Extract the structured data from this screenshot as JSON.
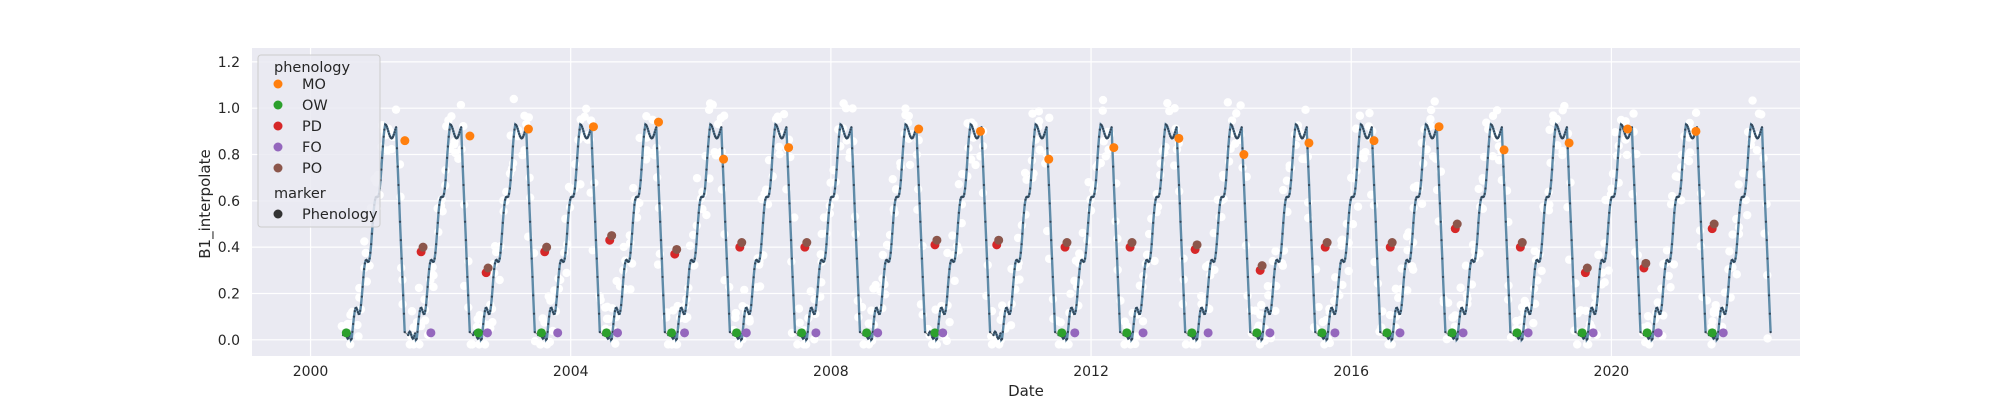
{
  "chart_data": {
    "type": "scatter",
    "xlabel": "Date",
    "ylabel": "B1_interpolate",
    "xlim": [
      1999.1,
      2022.9
    ],
    "ylim": [
      -0.07,
      1.26
    ],
    "x_ticks": [
      2000,
      2004,
      2008,
      2012,
      2016,
      2020
    ],
    "x_tick_labels": [
      "2000",
      "2004",
      "2008",
      "2012",
      "2016",
      "2020"
    ],
    "y_ticks": [
      0.0,
      0.2,
      0.4,
      0.6,
      0.8,
      1.0,
      1.2
    ],
    "y_tick_labels": [
      "0.0",
      "0.2",
      "0.4",
      "0.6",
      "0.8",
      "1.0",
      "1.2"
    ],
    "grid": true,
    "legend_position": "top-left",
    "legend": {
      "hue_title": "phenology",
      "hue_entries": [
        {
          "label": "MO",
          "color": "#ff7f0e"
        },
        {
          "label": "OW",
          "color": "#2ca02c"
        },
        {
          "label": "PD",
          "color": "#d62728"
        },
        {
          "label": "FO",
          "color": "#9467bd"
        },
        {
          "label": "PO",
          "color": "#8c564b"
        }
      ],
      "marker_title": "marker",
      "marker_entries": [
        {
          "label": "Phenology",
          "color": "#333333"
        }
      ]
    },
    "colors": {
      "plot_background": "#eaeaf2",
      "interpolated_line": "#5f8ba8",
      "interpolated_points": "#33475a",
      "raw_points": "#ffffff",
      "connector_line": "#808080"
    },
    "cycles": [
      {
        "mo": 2001.45,
        "mo_y": 0.86,
        "pd_y": 0.38,
        "ow": 2000.55,
        "fo": 2001.85
      },
      {
        "mo": 2002.45,
        "mo_y": 0.88,
        "pd_y": 0.29,
        "ow": 2002.58,
        "fo": 2002.72
      },
      {
        "mo": 2003.35,
        "mo_y": 0.91,
        "pd_y": 0.38,
        "ow": 2003.55,
        "fo": 2003.8
      },
      {
        "mo": 2004.35,
        "mo_y": 0.92,
        "pd_y": 0.43,
        "ow": 2004.55,
        "fo": 2004.72
      },
      {
        "mo": 2005.35,
        "mo_y": 0.94,
        "pd_y": 0.37,
        "ow": 2005.55,
        "fo": 2005.75
      },
      {
        "mo": 2006.35,
        "mo_y": 0.78,
        "pd_y": 0.4,
        "ow": 2006.55,
        "fo": 2006.7
      },
      {
        "mo": 2007.35,
        "mo_y": 0.83,
        "pd_y": 0.4,
        "ow": 2007.55,
        "fo": 2007.77
      },
      {
        "mo": 2009.35,
        "mo_y": 0.91,
        "pd_y": 0.41,
        "ow": 2008.55,
        "fo": 2008.72
      },
      {
        "mo": 2010.3,
        "mo_y": 0.9,
        "pd_y": 0.41,
        "ow": 2009.6,
        "fo": 2009.72
      },
      {
        "mo": 2011.35,
        "mo_y": 0.78,
        "pd_y": 0.4,
        "ow": 2011.55,
        "fo": 2011.75
      },
      {
        "mo": 2012.35,
        "mo_y": 0.83,
        "pd_y": 0.4,
        "ow": 2012.55,
        "fo": 2012.8
      },
      {
        "mo": 2013.35,
        "mo_y": 0.87,
        "pd_y": 0.39,
        "ow": 2013.55,
        "fo": 2013.8
      },
      {
        "mo": 2014.35,
        "mo_y": 0.8,
        "pd_y": 0.3,
        "ow": 2014.55,
        "fo": 2014.75
      },
      {
        "mo": 2015.35,
        "mo_y": 0.85,
        "pd_y": 0.4,
        "ow": 2015.55,
        "fo": 2015.75
      },
      {
        "mo": 2016.35,
        "mo_y": 0.86,
        "pd_y": 0.4,
        "ow": 2016.55,
        "fo": 2016.75
      },
      {
        "mo": 2017.35,
        "mo_y": 0.92,
        "pd_y": 0.48,
        "ow": 2017.55,
        "fo": 2017.72
      },
      {
        "mo": 2018.35,
        "mo_y": 0.82,
        "pd_y": 0.4,
        "ow": 2018.55,
        "fo": 2018.72
      },
      {
        "mo": 2019.35,
        "mo_y": 0.85,
        "pd_y": 0.29,
        "ow": 2019.55,
        "fo": 2019.72
      },
      {
        "mo": 2020.25,
        "mo_y": 0.91,
        "pd_y": 0.31,
        "ow": 2020.55,
        "fo": 2020.72
      },
      {
        "mo": 2021.3,
        "mo_y": 0.9,
        "pd_y": 0.48,
        "ow": 2021.55,
        "fo": 2021.72
      }
    ]
  }
}
